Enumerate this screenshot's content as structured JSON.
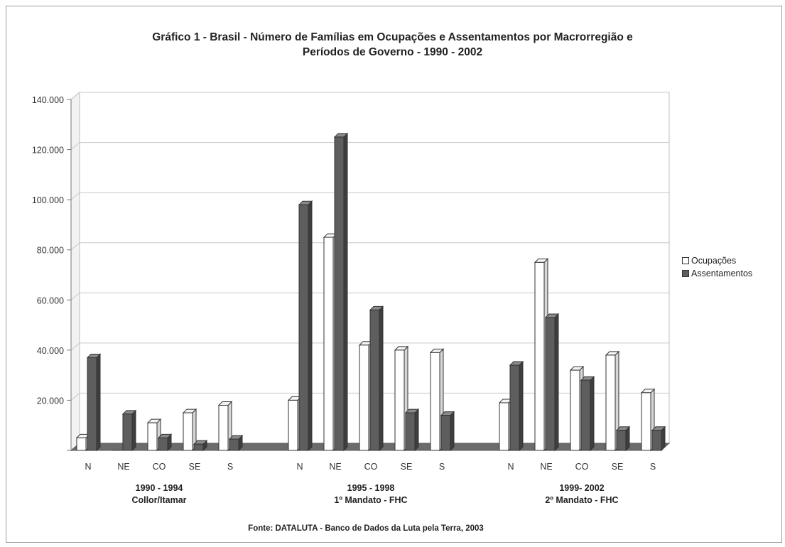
{
  "title": {
    "line1": "Gráfico 1 - Brasil - Número de Famílias em Ocupações e Assentamentos por Macrorregião e",
    "line2": "Períodos de Governo - 1990 - 2002"
  },
  "source": "Fonte: DATALUTA - Banco de Dados da Luta pela Terra, 2003",
  "colors": {
    "ocupacoes": "#ffffff",
    "assentamentos": "#5e5e5e",
    "assentamentos_top": "#8a8a8a",
    "assentamentos_side": "#3e3e3e",
    "floor": "#6b6b6b"
  },
  "chart_data": {
    "type": "bar",
    "title": "Gráfico 1 - Brasil - Número de Famílias em Ocupações e Assentamentos por Macrorregião e Períodos de Governo - 1990 - 2002",
    "ylim": [
      0,
      140000
    ],
    "yticks": [
      "",
      "20.000",
      "40.000",
      "60.000",
      "80.000",
      "100.000",
      "120.000",
      "140.000"
    ],
    "grid": true,
    "legend_position": "right",
    "groups": [
      {
        "label1": "1990 - 1994",
        "label2": "Collor/Itamar",
        "categories": [
          "N",
          "NE",
          "CO",
          "SE",
          "S"
        ],
        "series": [
          {
            "name": "Ocupações",
            "values": [
              5000,
              0,
              11000,
              15000,
              18000
            ]
          },
          {
            "name": "Assentamentos",
            "values": [
              37000,
              14500,
              5000,
              2500,
              4500
            ]
          }
        ]
      },
      {
        "label1": "1995 - 1998",
        "label2": "1º Mandato - FHC",
        "categories": [
          "N",
          "NE",
          "CO",
          "SE",
          "S"
        ],
        "series": [
          {
            "name": "Ocupações",
            "values": [
              20000,
              85000,
              42000,
              40000,
              39000
            ]
          },
          {
            "name": "Assentamentos",
            "values": [
              98000,
              125000,
              56000,
              15000,
              14000
            ]
          }
        ]
      },
      {
        "label1": "1999- 2002",
        "label2": "2º Mandato - FHC",
        "categories": [
          "N",
          "NE",
          "CO",
          "SE",
          "S"
        ],
        "series": [
          {
            "name": "Ocupações",
            "values": [
              19000,
              75000,
              32000,
              38000,
              23000
            ]
          },
          {
            "name": "Assentamentos",
            "values": [
              34000,
              53000,
              28000,
              8000,
              8000
            ]
          }
        ]
      }
    ],
    "legend": [
      "Ocupações",
      "Assentamentos"
    ]
  }
}
